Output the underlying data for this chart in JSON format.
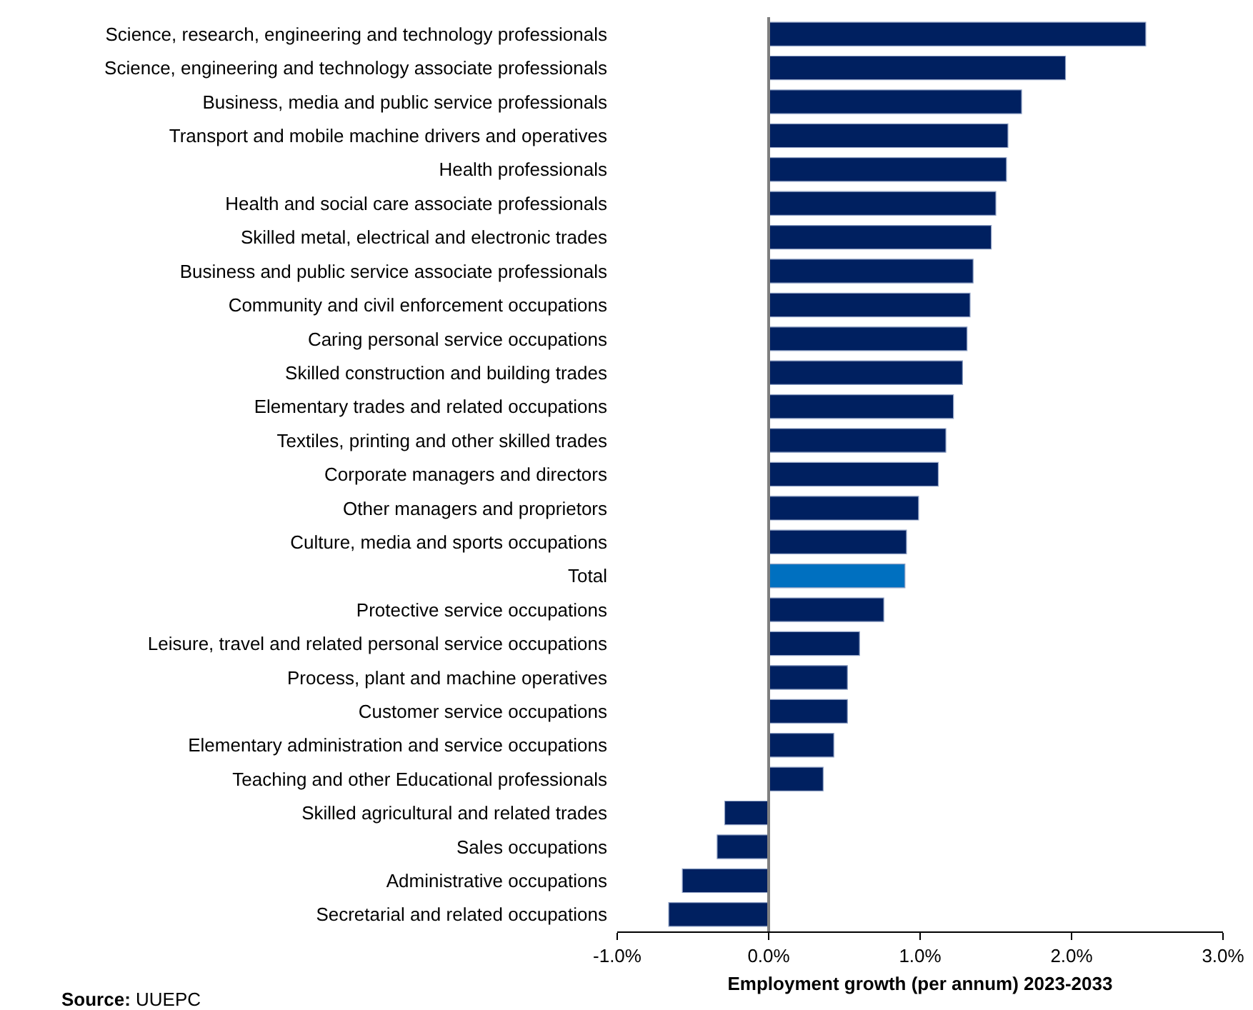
{
  "chart_data": {
    "type": "bar",
    "orientation": "horizontal",
    "categories": [
      "Science, research, engineering and technology professionals",
      "Science, engineering and technology associate professionals",
      "Business, media and public service professionals",
      "Transport and mobile machine drivers and operatives",
      "Health professionals",
      "Health and social care associate professionals",
      "Skilled metal, electrical and electronic trades",
      "Business and public service associate professionals",
      "Community and civil enforcement occupations",
      "Caring personal service occupations",
      "Skilled construction and building trades",
      "Elementary trades and related occupations",
      "Textiles, printing and other skilled trades",
      "Corporate managers and directors",
      "Other managers and proprietors",
      "Culture, media and sports occupations",
      "Total",
      "Protective service occupations",
      "Leisure, travel and related personal service occupations",
      "Process, plant and machine operatives",
      "Customer service occupations",
      "Elementary administration and service occupations",
      "Teaching and other Educational professionals",
      "Skilled agricultural and related trades",
      "Sales occupations",
      "Administrative occupations",
      "Secretarial and related occupations"
    ],
    "values": [
      2.49,
      1.96,
      1.67,
      1.58,
      1.57,
      1.5,
      1.47,
      1.35,
      1.33,
      1.31,
      1.28,
      1.22,
      1.17,
      1.12,
      0.99,
      0.91,
      0.9,
      0.76,
      0.6,
      0.52,
      0.52,
      0.43,
      0.36,
      -0.29,
      -0.34,
      -0.57,
      -0.66
    ],
    "colors": [
      "#002060",
      "#002060",
      "#002060",
      "#002060",
      "#002060",
      "#002060",
      "#002060",
      "#002060",
      "#002060",
      "#002060",
      "#002060",
      "#002060",
      "#002060",
      "#002060",
      "#002060",
      "#002060",
      "#0070c0",
      "#002060",
      "#002060",
      "#002060",
      "#002060",
      "#002060",
      "#002060",
      "#002060",
      "#002060",
      "#002060",
      "#002060"
    ],
    "xlim": [
      -1,
      3
    ],
    "xticks": [
      {
        "value": -1,
        "label": "-1.0%"
      },
      {
        "value": 0,
        "label": "0.0%"
      },
      {
        "value": 1,
        "label": "1.0%"
      },
      {
        "value": 2,
        "label": "2.0%"
      },
      {
        "value": 3,
        "label": "3.0%"
      }
    ],
    "xlabel": "Employment growth (per annum) 2023-2033",
    "ref_lines": [
      {
        "axis": "x",
        "value": 0,
        "color": "#7f7f7f"
      }
    ],
    "annotations": [
      "Source: UUEPC"
    ],
    "grid": false
  }
}
